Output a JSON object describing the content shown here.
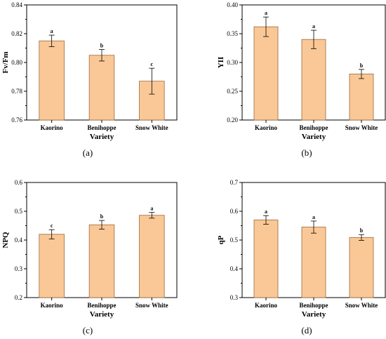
{
  "chart_data": [
    {
      "type": "bar",
      "panel_label": "(a)",
      "ylabel": "Fv/Fm",
      "xlabel": "Variety",
      "categories": [
        "Kaorino",
        "Benihoppe",
        "Snow White"
      ],
      "values": [
        0.815,
        0.805,
        0.787
      ],
      "errors": [
        0.004,
        0.004,
        0.009
      ],
      "significance": [
        "a",
        "b",
        "c"
      ],
      "ylim": [
        0.76,
        0.84
      ],
      "yticks": [
        "0.76",
        "0.78",
        "0.80",
        "0.82",
        "0.84"
      ],
      "bar_color": "#FAC896",
      "bar_edge_color": "#9A6A3A"
    },
    {
      "type": "bar",
      "panel_label": "(b)",
      "ylabel": "YII",
      "xlabel": "Variety",
      "categories": [
        "Kaorino",
        "Benihoppe",
        "Snow White"
      ],
      "values": [
        0.362,
        0.34,
        0.28
      ],
      "errors": [
        0.017,
        0.016,
        0.008
      ],
      "significance": [
        "a",
        "a",
        "b"
      ],
      "ylim": [
        0.2,
        0.4
      ],
      "yticks": [
        "0.20",
        "0.25",
        "0.30",
        "0.35",
        "0.40"
      ],
      "bar_color": "#FAC896",
      "bar_edge_color": "#9A6A3A"
    },
    {
      "type": "bar",
      "panel_label": "(c)",
      "ylabel": "NPQ",
      "xlabel": "Variety",
      "categories": [
        "Kaorino",
        "Benihoppe",
        "Snow White"
      ],
      "values": [
        0.42,
        0.453,
        0.486
      ],
      "errors": [
        0.016,
        0.015,
        0.01
      ],
      "significance": [
        "c",
        "b",
        "a"
      ],
      "ylim": [
        0.2,
        0.6
      ],
      "yticks": [
        "0.2",
        "0.3",
        "0.4",
        "0.5",
        "0.6"
      ],
      "bar_color": "#FAC896",
      "bar_edge_color": "#9A6A3A"
    },
    {
      "type": "bar",
      "panel_label": "(d)",
      "ylabel": "qP",
      "xlabel": "Variety",
      "categories": [
        "Kaorino",
        "Benihoppe",
        "Snow White"
      ],
      "values": [
        0.57,
        0.545,
        0.509
      ],
      "errors": [
        0.015,
        0.021,
        0.01
      ],
      "significance": [
        "a",
        "a",
        "b"
      ],
      "ylim": [
        0.3,
        0.7
      ],
      "yticks": [
        "0.3",
        "0.4",
        "0.5",
        "0.6",
        "0.7"
      ],
      "bar_color": "#FAC896",
      "bar_edge_color": "#9A6A3A"
    }
  ]
}
